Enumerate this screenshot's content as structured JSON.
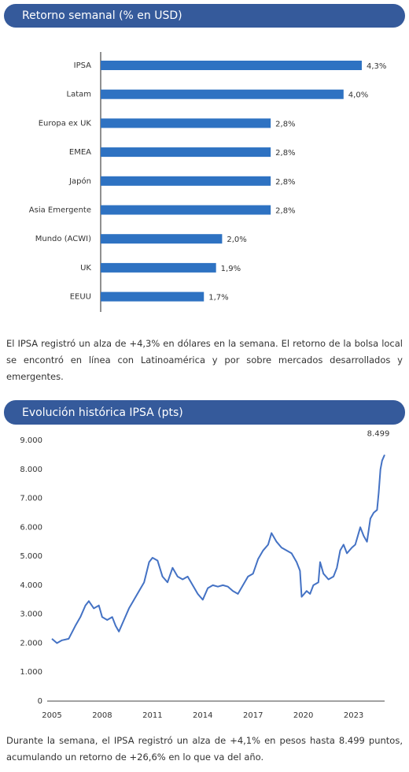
{
  "chart_data": [
    {
      "type": "hbar",
      "title": "Retorno semanal (% en USD)",
      "categories": [
        "IPSA",
        "Latam",
        "Europa ex UK",
        "EMEA",
        "Japón",
        "Asia Emergente",
        "Mundo (ACWI)",
        "UK",
        "EEUU"
      ],
      "values": [
        4.3,
        4.0,
        2.8,
        2.8,
        2.8,
        2.8,
        2.0,
        1.9,
        1.7
      ],
      "value_labels": [
        "4,3%",
        "4,0%",
        "2,8%",
        "2,8%",
        "2,8%",
        "2,8%",
        "2,0%",
        "1,9%",
        "1,7%"
      ],
      "color": "#2e72c2"
    },
    {
      "type": "line",
      "title": "Evolución histórica IPSA (pts)",
      "x": [
        2005.0,
        2005.3,
        2005.6,
        2006.0,
        2006.4,
        2006.7,
        2007.0,
        2007.2,
        2007.5,
        2007.8,
        2008.0,
        2008.3,
        2008.6,
        2008.8,
        2009.0,
        2009.3,
        2009.6,
        2009.9,
        2010.2,
        2010.5,
        2010.8,
        2011.0,
        2011.3,
        2011.6,
        2011.9,
        2012.2,
        2012.5,
        2012.8,
        2013.1,
        2013.4,
        2013.7,
        2014.0,
        2014.3,
        2014.6,
        2014.9,
        2015.2,
        2015.5,
        2015.8,
        2016.1,
        2016.4,
        2016.7,
        2017.0,
        2017.3,
        2017.6,
        2017.9,
        2018.1,
        2018.4,
        2018.7,
        2019.0,
        2019.3,
        2019.6,
        2019.8,
        2019.9,
        2020.2,
        2020.4,
        2020.6,
        2020.9,
        2021.0,
        2021.2,
        2021.5,
        2021.8,
        2022.0,
        2022.2,
        2022.4,
        2022.6,
        2022.9,
        2023.1,
        2023.4,
        2023.6,
        2023.8,
        2024.0,
        2024.2,
        2024.4,
        2024.5,
        2024.6,
        2024.7,
        2024.85
      ],
      "values": [
        2150,
        2000,
        2100,
        2150,
        2600,
        2900,
        3300,
        3450,
        3200,
        3300,
        2900,
        2800,
        2900,
        2600,
        2400,
        2800,
        3200,
        3500,
        3800,
        4100,
        4800,
        4950,
        4850,
        4300,
        4100,
        4600,
        4300,
        4200,
        4300,
        4000,
        3700,
        3500,
        3900,
        4000,
        3950,
        4000,
        3950,
        3800,
        3700,
        4000,
        4300,
        4400,
        4900,
        5200,
        5400,
        5800,
        5500,
        5300,
        5200,
        5100,
        4800,
        4500,
        3600,
        3800,
        3700,
        4000,
        4100,
        4800,
        4400,
        4200,
        4300,
        4600,
        5200,
        5400,
        5100,
        5300,
        5400,
        6000,
        5700,
        5500,
        6300,
        6500,
        6600,
        7200,
        8000,
        8300,
        8499
      ],
      "color": "#4472c4",
      "xlim": [
        2005,
        2024.85
      ],
      "xticks": [
        2005,
        2008,
        2011,
        2014,
        2017,
        2020,
        2023
      ],
      "ylim": [
        0,
        9000
      ],
      "yticks": [
        0,
        {
          "value": 1000,
          "label": "1.000"
        },
        {
          "value": 2000,
          "label": "2.000"
        },
        {
          "value": 3000,
          "label": "3.000"
        },
        {
          "value": 4000,
          "label": "4.000"
        },
        {
          "value": 5000,
          "label": "5.000"
        },
        {
          "value": 6000,
          "label": "6.000"
        },
        {
          "value": 7000,
          "label": "7.000"
        },
        {
          "value": 8000,
          "label": "8.000"
        },
        {
          "value": 9000,
          "label": "9.000"
        }
      ],
      "annotation": {
        "value": 8499,
        "label": "8.499"
      }
    }
  ],
  "paragraphs": [
    "El IPSA registró un alza de +4,3% en dólares en la semana. El retorno de la bolsa local se encontró en línea con Latinoamérica y por sobre mercados desarrollados y emergentes.",
    "Durante la semana, el IPSA registró un alza de +4,1% en pesos hasta 8.499 puntos, acumulando un retorno de +26,6% en lo que va del año."
  ]
}
